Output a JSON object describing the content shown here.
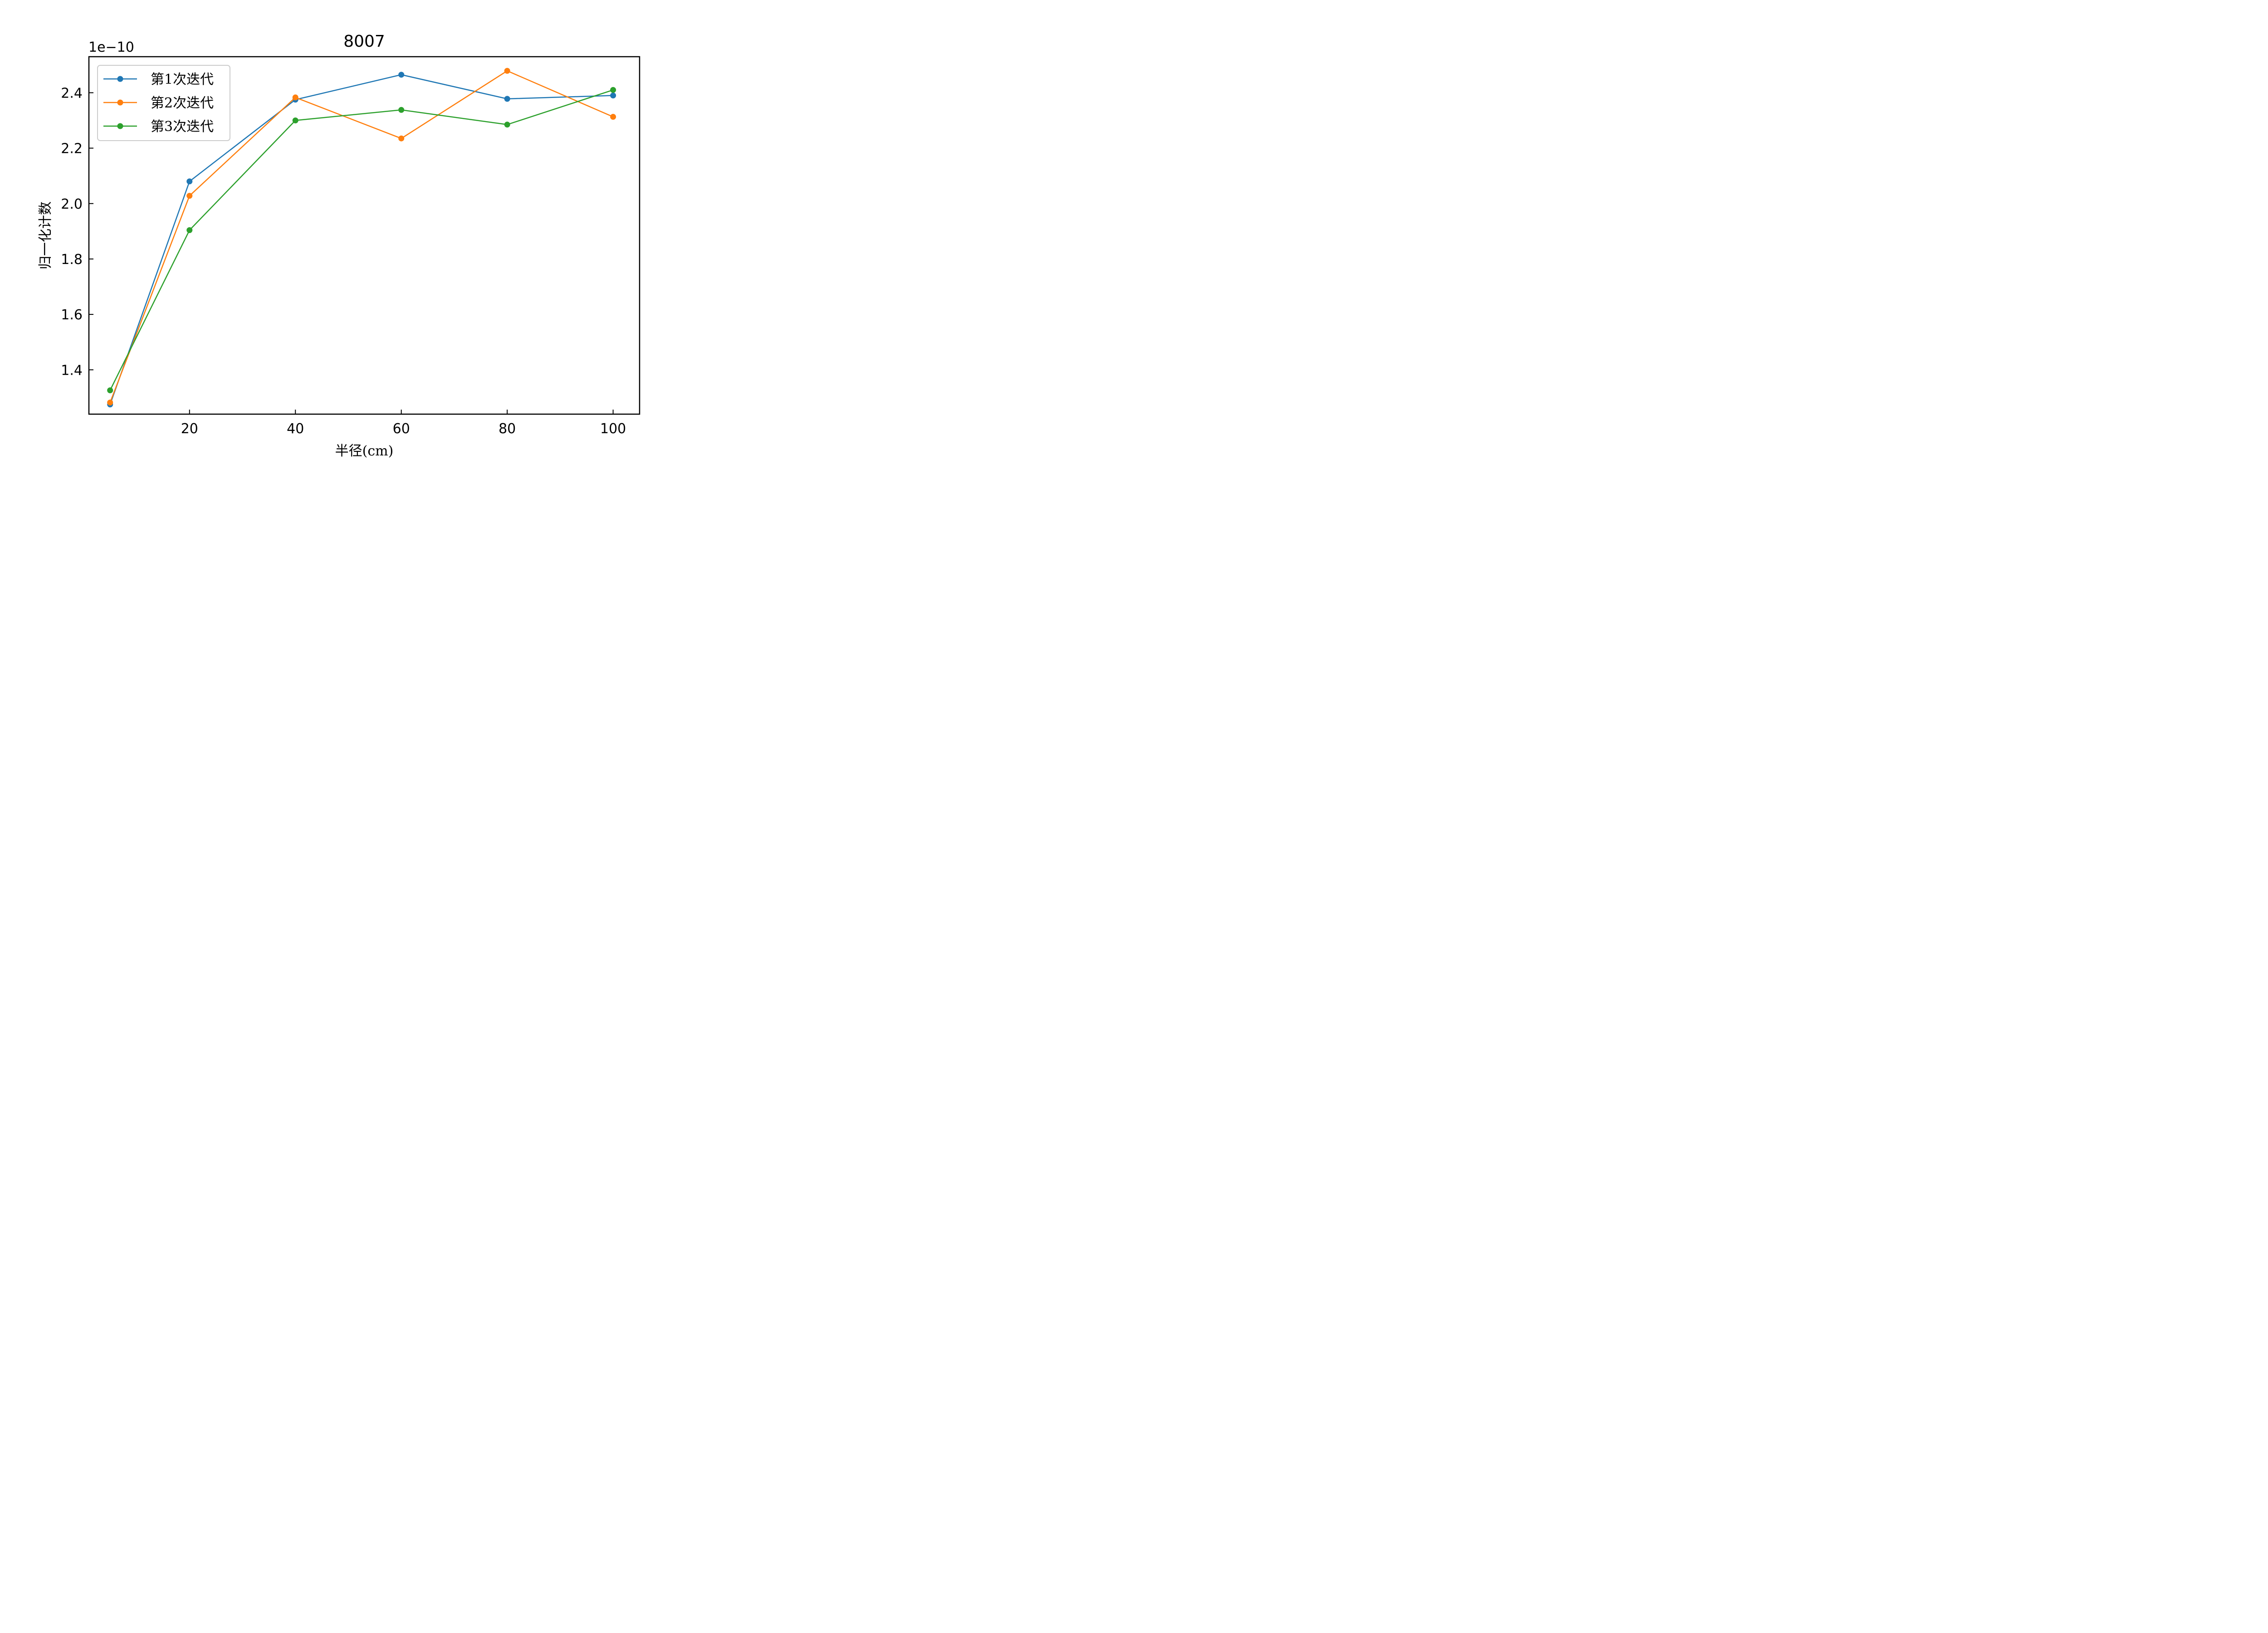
{
  "chart_data": {
    "type": "line",
    "title": "8007",
    "xlabel": "半径(cm)",
    "ylabel": "归一化计数",
    "y_offset_label": "1e−10",
    "x": [
      5,
      20,
      40,
      60,
      80,
      100
    ],
    "xlim": [
      1,
      105
    ],
    "ylim": [
      1.24,
      2.53
    ],
    "y_scale_factor": 1e-10,
    "xticks": [
      20,
      40,
      60,
      80,
      100
    ],
    "xtick_labels": [
      "20",
      "40",
      "60",
      "80",
      "100"
    ],
    "yticks": [
      1.4,
      1.6,
      1.8,
      2.0,
      2.2,
      2.4
    ],
    "ytick_labels": [
      "1.4",
      "1.6",
      "1.8",
      "2.0",
      "2.2",
      "2.4"
    ],
    "grid": false,
    "legend_position": "upper-left",
    "series": [
      {
        "name": "第1次迭代",
        "color": "#1f77b4",
        "values": [
          1.275,
          2.08,
          2.375,
          2.465,
          2.378,
          2.39
        ]
      },
      {
        "name": "第2次迭代",
        "color": "#ff7f0e",
        "values": [
          1.282,
          2.028,
          2.383,
          2.235,
          2.479,
          2.313
        ]
      },
      {
        "name": "第3次迭代",
        "color": "#2ca02c",
        "values": [
          1.326,
          1.904,
          2.3,
          2.338,
          2.285,
          2.41
        ]
      }
    ]
  }
}
